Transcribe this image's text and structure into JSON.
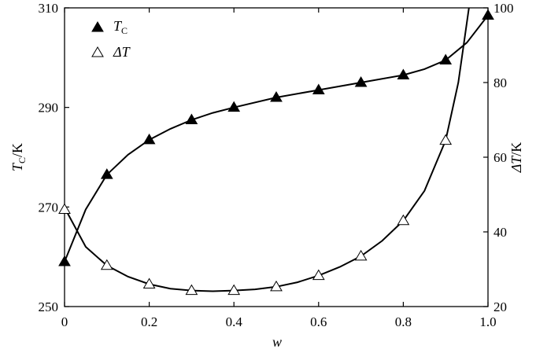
{
  "chart_data": {
    "type": "line",
    "x_axis": {
      "label": "w",
      "range": [
        0,
        1.0
      ],
      "ticks": [
        0,
        0.2,
        0.4,
        0.6,
        0.8,
        1.0
      ],
      "tick_labels": [
        "0",
        "0.2",
        "0.4",
        "0.6",
        "0.8",
        "1.0"
      ]
    },
    "y_left": {
      "label_main": "T",
      "label_sub": "C",
      "label_unit": "/K",
      "range": [
        250,
        310
      ],
      "ticks": [
        250,
        270,
        290,
        310
      ],
      "tick_labels": [
        "250",
        "270",
        "290",
        "310"
      ]
    },
    "y_right": {
      "label_main": "ΔT",
      "label_unit": "/K",
      "range": [
        20,
        100
      ],
      "ticks": [
        20,
        40,
        60,
        80,
        100
      ],
      "tick_labels": [
        "20",
        "40",
        "60",
        "80",
        "100"
      ]
    },
    "series": [
      {
        "name_main": "T",
        "name_sub": "C",
        "axis": "left",
        "marker": "filled-triangle",
        "color": "#000000",
        "points": [
          [
            0,
            259
          ],
          [
            0.1,
            276.5
          ],
          [
            0.2,
            283.5
          ],
          [
            0.3,
            287.5
          ],
          [
            0.4,
            290
          ],
          [
            0.5,
            292
          ],
          [
            0.6,
            293.5
          ],
          [
            0.7,
            295
          ],
          [
            0.8,
            296.5
          ],
          [
            0.9,
            299.5
          ],
          [
            1.0,
            308.5
          ]
        ],
        "curve": [
          [
            0,
            259
          ],
          [
            0.05,
            269.5
          ],
          [
            0.1,
            276.5
          ],
          [
            0.15,
            280.5
          ],
          [
            0.2,
            283.5
          ],
          [
            0.25,
            285.7
          ],
          [
            0.3,
            287.5
          ],
          [
            0.35,
            288.9
          ],
          [
            0.4,
            290
          ],
          [
            0.5,
            292
          ],
          [
            0.6,
            293.5
          ],
          [
            0.7,
            295
          ],
          [
            0.8,
            296.5
          ],
          [
            0.85,
            297.7
          ],
          [
            0.9,
            299.5
          ],
          [
            0.95,
            303
          ],
          [
            1.0,
            308.5
          ]
        ]
      },
      {
        "name_main": "ΔT",
        "axis": "right",
        "marker": "open-triangle",
        "color": "#000000",
        "points": [
          [
            0,
            46
          ],
          [
            0.1,
            31
          ],
          [
            0.2,
            26
          ],
          [
            0.3,
            24.3
          ],
          [
            0.4,
            24.3
          ],
          [
            0.5,
            25.3
          ],
          [
            0.6,
            28.3
          ],
          [
            0.7,
            33.5
          ],
          [
            0.8,
            43
          ],
          [
            0.9,
            64.5
          ]
        ],
        "curve": [
          [
            0,
            46.5
          ],
          [
            0.05,
            36
          ],
          [
            0.1,
            31
          ],
          [
            0.15,
            28
          ],
          [
            0.2,
            26
          ],
          [
            0.25,
            24.8
          ],
          [
            0.3,
            24.3
          ],
          [
            0.35,
            24.1
          ],
          [
            0.4,
            24.3
          ],
          [
            0.45,
            24.6
          ],
          [
            0.5,
            25.3
          ],
          [
            0.55,
            26.5
          ],
          [
            0.6,
            28.3
          ],
          [
            0.65,
            30.6
          ],
          [
            0.7,
            33.5
          ],
          [
            0.75,
            37.6
          ],
          [
            0.8,
            43
          ],
          [
            0.85,
            51
          ],
          [
            0.9,
            64.5
          ],
          [
            0.93,
            80
          ],
          [
            0.955,
            100
          ]
        ]
      }
    ],
    "legend": {
      "position": "top-left"
    },
    "grid": false
  }
}
